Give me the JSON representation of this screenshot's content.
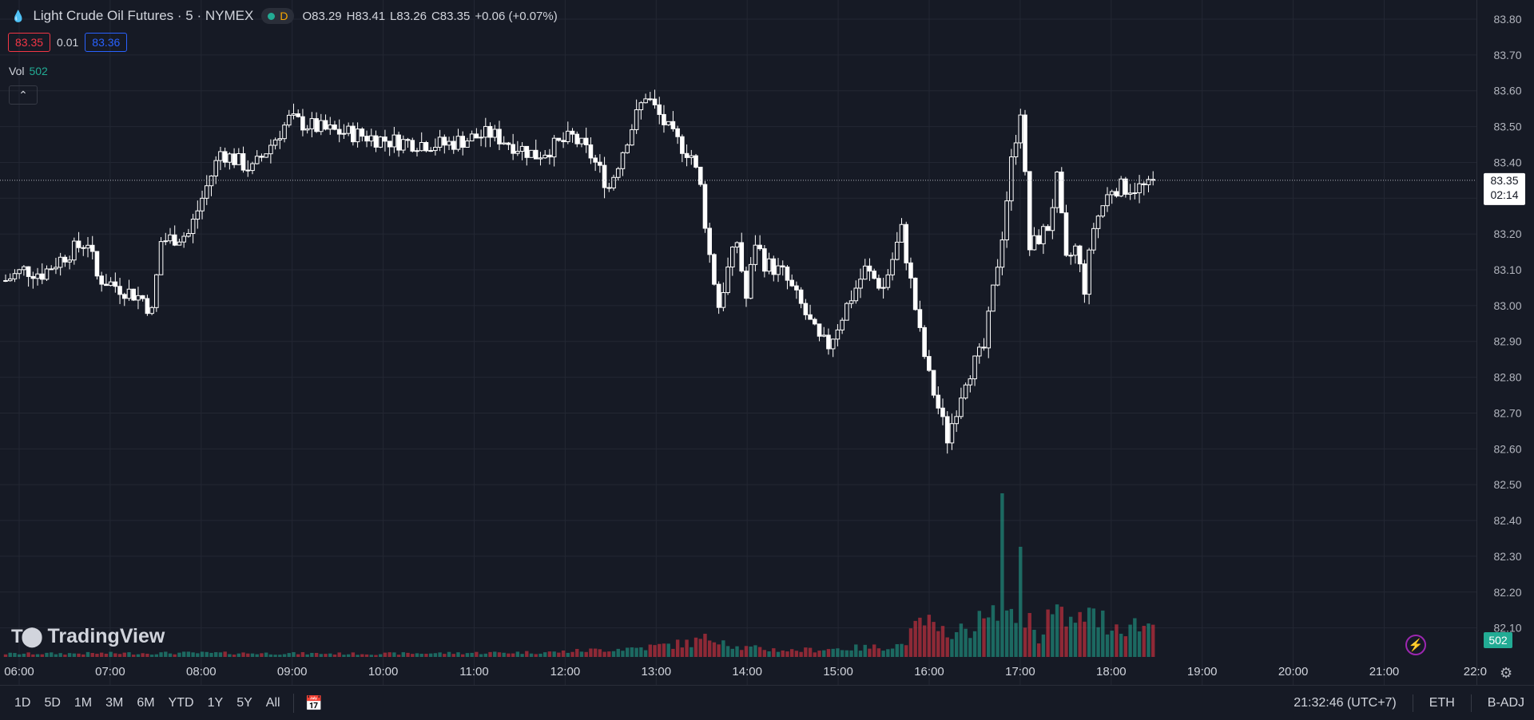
{
  "header": {
    "symbol_title": "Light Crude Oil Futures · 5 · NYMEX",
    "market_status_letter": "D",
    "open_label": "O",
    "open_value": "83.29",
    "high_label": "H",
    "high_value": "83.41",
    "low_label": "L",
    "low_value": "83.26",
    "close_label": "C",
    "close_value": "83.35",
    "change": "+0.06 (+0.07%)",
    "bid": "83.35",
    "spread": "0.01",
    "ask": "83.36",
    "vol_label": "Vol",
    "vol_value": "502",
    "collapse_icon": "chevron-up-icon"
  },
  "logo_text": "TradingView",
  "bottom_bar": {
    "ranges": [
      "1D",
      "5D",
      "1M",
      "3M",
      "6M",
      "YTD",
      "1Y",
      "5Y",
      "All"
    ],
    "clock": "21:32:46 (UTC+7)",
    "session": "ETH",
    "adjust": "B-ADJ"
  },
  "colors": {
    "background": "#161a25",
    "up_volume": "#22ab94",
    "down_volume": "#f23645",
    "candle": "#ffffff",
    "bid": "#f23645",
    "ask": "#2962ff"
  },
  "chart_data": {
    "type": "candlestick",
    "y_ticks": [
      "83.80",
      "83.70",
      "83.60",
      "83.50",
      "83.40",
      "83.30",
      "83.20",
      "83.10",
      "83.00",
      "82.90",
      "82.80",
      "82.70",
      "82.60",
      "82.50",
      "82.40",
      "82.30",
      "82.20",
      "82.10"
    ],
    "ylim": [
      82.05,
      83.84
    ],
    "x_ticks": [
      "06:00",
      "07:00",
      "08:00",
      "09:00",
      "10:00",
      "11:00",
      "12:00",
      "13:00",
      "14:00",
      "15:00",
      "16:00",
      "17:00",
      "18:00",
      "19:00",
      "20:00",
      "21:00",
      "22:0"
    ],
    "last_price": "83.35",
    "countdown": "02:14",
    "last_volume": "502",
    "interval_minutes": 5,
    "close_anchors": [
      [
        0,
        83.07
      ],
      [
        4,
        83.1
      ],
      [
        8,
        83.09
      ],
      [
        14,
        83.15
      ],
      [
        18,
        83.18
      ],
      [
        20,
        83.08
      ],
      [
        30,
        83.02
      ],
      [
        32,
        82.98
      ],
      [
        34,
        83.18
      ],
      [
        40,
        83.2
      ],
      [
        43,
        83.3
      ],
      [
        47,
        83.43
      ],
      [
        54,
        83.38
      ],
      [
        58,
        83.45
      ],
      [
        62,
        83.52
      ],
      [
        70,
        83.49
      ],
      [
        76,
        83.48
      ],
      [
        84,
        83.46
      ],
      [
        96,
        83.45
      ],
      [
        106,
        83.48
      ],
      [
        116,
        83.42
      ],
      [
        124,
        83.47
      ],
      [
        128,
        83.42
      ],
      [
        132,
        83.33
      ],
      [
        136,
        83.47
      ],
      [
        140,
        83.59
      ],
      [
        146,
        83.47
      ],
      [
        150,
        83.42
      ],
      [
        152,
        83.33
      ],
      [
        154,
        83.14
      ],
      [
        156,
        83.0
      ],
      [
        158,
        83.1
      ],
      [
        160,
        83.18
      ],
      [
        162,
        83.02
      ],
      [
        164,
        83.18
      ],
      [
        166,
        83.12
      ],
      [
        170,
        83.09
      ],
      [
        174,
        83.0
      ],
      [
        178,
        82.9
      ],
      [
        180,
        82.89
      ],
      [
        184,
        83.0
      ],
      [
        188,
        83.1
      ],
      [
        192,
        83.05
      ],
      [
        196,
        83.21
      ],
      [
        200,
        82.92
      ],
      [
        202,
        82.8
      ],
      [
        206,
        82.63
      ],
      [
        210,
        82.8
      ],
      [
        214,
        82.88
      ],
      [
        218,
        83.2
      ],
      [
        220,
        83.4
      ],
      [
        222,
        83.55
      ],
      [
        224,
        83.16
      ],
      [
        228,
        83.22
      ],
      [
        230,
        83.35
      ],
      [
        232,
        83.12
      ],
      [
        234,
        83.16
      ],
      [
        236,
        83.05
      ],
      [
        238,
        83.22
      ],
      [
        240,
        83.28
      ],
      [
        242,
        83.33
      ]
    ],
    "volume_heights": [
      [
        0,
        4
      ],
      [
        40,
        5
      ],
      [
        80,
        4
      ],
      [
        120,
        6
      ],
      [
        140,
        12
      ],
      [
        150,
        18
      ],
      [
        156,
        26
      ],
      [
        160,
        12
      ],
      [
        166,
        10
      ],
      [
        172,
        8
      ],
      [
        180,
        10
      ],
      [
        190,
        12
      ],
      [
        196,
        15
      ],
      [
        200,
        40
      ],
      [
        202,
        44
      ],
      [
        204,
        24
      ],
      [
        206,
        40
      ],
      [
        208,
        28
      ],
      [
        212,
        42
      ],
      [
        216,
        48
      ],
      [
        218,
        100
      ],
      [
        220,
        44
      ],
      [
        222,
        66
      ],
      [
        224,
        44
      ],
      [
        226,
        26
      ],
      [
        228,
        52
      ],
      [
        232,
        48
      ],
      [
        234,
        38
      ],
      [
        236,
        54
      ],
      [
        238,
        48
      ],
      [
        240,
        46
      ],
      [
        242,
        40
      ]
    ]
  }
}
